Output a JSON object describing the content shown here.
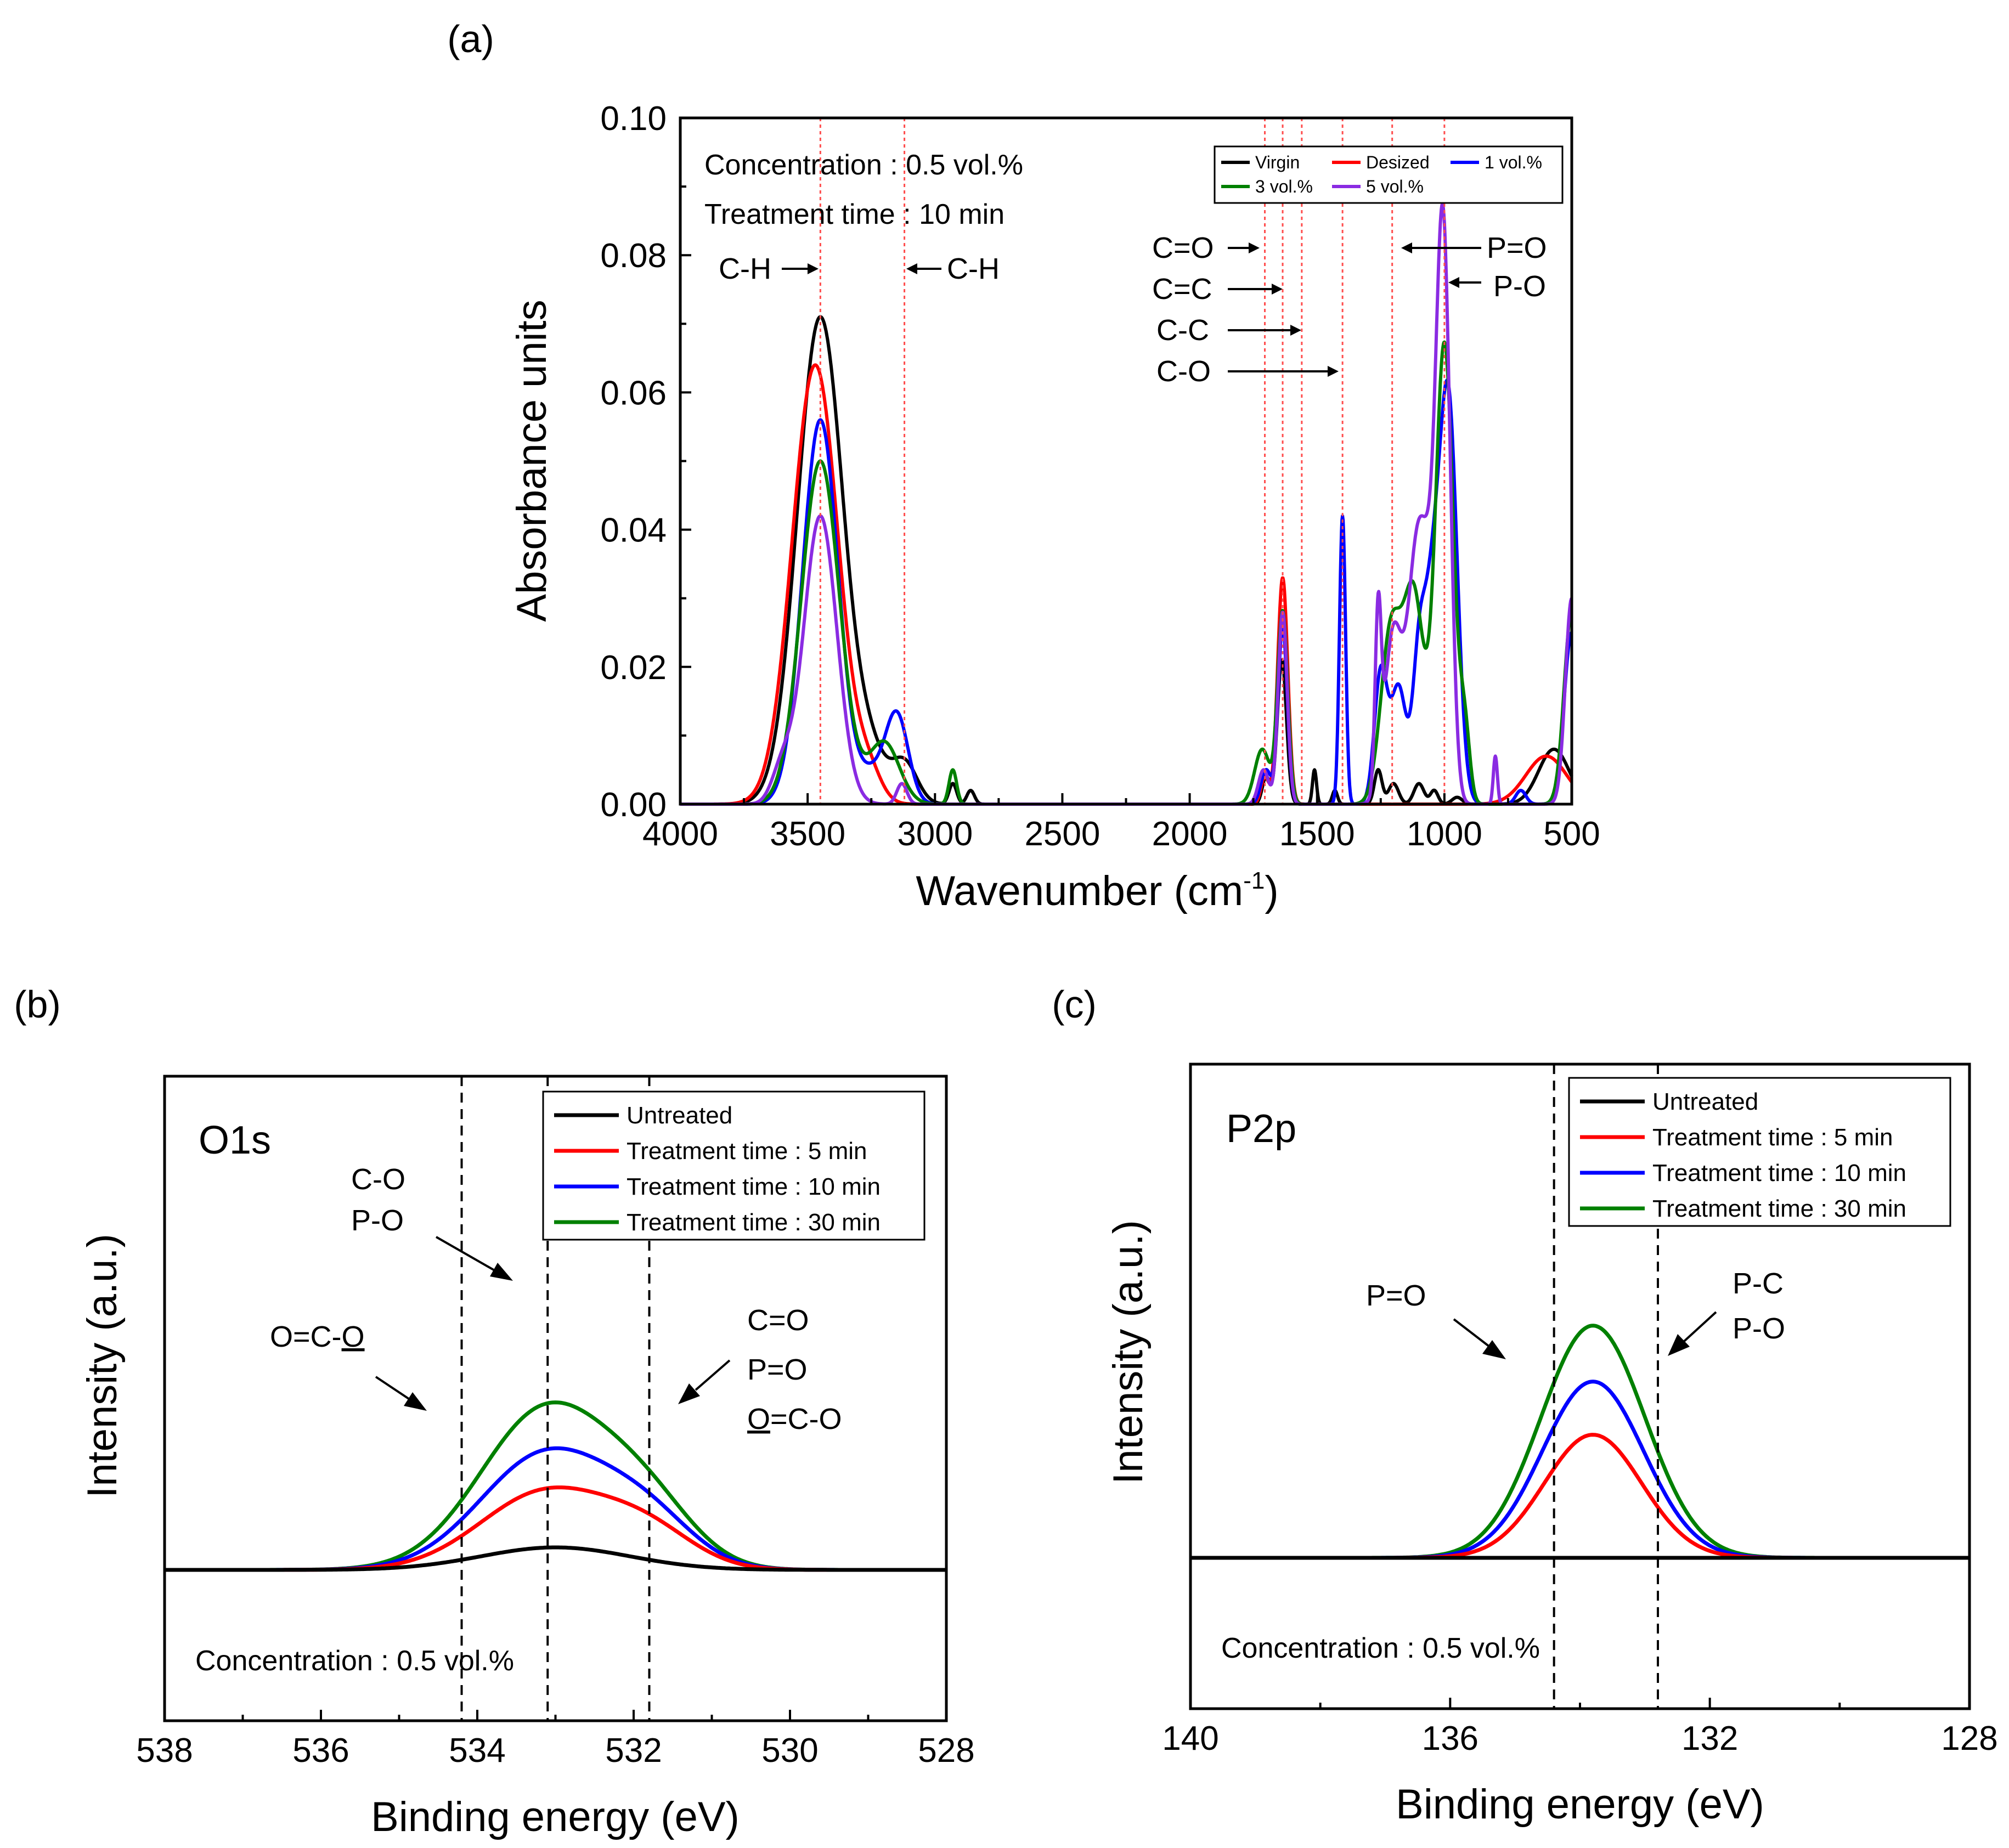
{
  "chart_data": [
    {
      "panel": "(a)",
      "type": "line",
      "xlabel": "Wavenumber (cm",
      "xlabel_sup": "-1",
      "xlabel_end": ")",
      "ylabel": "Absorbance units",
      "xlim": [
        4000,
        500
      ],
      "ylim": [
        0.0,
        0.1
      ],
      "xticks": [
        "4000",
        "3500",
        "3000",
        "2500",
        "2000",
        "1500",
        "1000",
        "500"
      ],
      "yticks": [
        "0.00",
        "0.02",
        "0.04",
        "0.06",
        "0.08",
        "0.10"
      ],
      "notes": [
        "Concentration : 0.5 vol.%",
        "Treatment time : 10 min"
      ],
      "reference_lines": [
        3450,
        3120,
        1705,
        1635,
        1560,
        1400,
        1205,
        1000
      ],
      "annotations": [
        "C-H",
        "C-H",
        "C=O",
        "C=C",
        "C-C",
        "C-O",
        "P=O",
        "P-O"
      ],
      "legend_position": "top-right",
      "series": [
        {
          "name": "Virgin",
          "color": "#000000",
          "peaks": [
            [
              3450,
              0.071,
              90
            ],
            [
              3250,
              0.006,
              60
            ],
            [
              3120,
              0.006,
              50
            ],
            [
              2930,
              0.003,
              15
            ],
            [
              2860,
              0.002,
              15
            ],
            [
              1638,
              0.021,
              18
            ],
            [
              1700,
              0.004,
              15
            ],
            [
              1510,
              0.005,
              8
            ],
            [
              1430,
              0.002,
              10
            ],
            [
              1260,
              0.005,
              15
            ],
            [
              1200,
              0.003,
              20
            ],
            [
              1100,
              0.003,
              20
            ],
            [
              1040,
              0.002,
              15
            ],
            [
              950,
              0.001,
              20
            ],
            [
              570,
              0.008,
              60
            ]
          ]
        },
        {
          "name": "Desized",
          "color": "#ff0000",
          "peaks": [
            [
              3470,
              0.064,
              90
            ],
            [
              3260,
              0.004,
              50
            ],
            [
              1635,
              0.033,
              20
            ],
            [
              1705,
              0.004,
              15
            ],
            [
              600,
              0.007,
              80
            ]
          ]
        },
        {
          "name": "1 vol.%",
          "color": "#0000ff",
          "peaks": [
            [
              3450,
              0.056,
              70
            ],
            [
              3150,
              0.013,
              45
            ],
            [
              3250,
              0.004,
              50
            ],
            [
              1635,
              0.026,
              18
            ],
            [
              1700,
              0.005,
              20
            ],
            [
              1400,
              0.042,
              12
            ],
            [
              1250,
              0.019,
              25
            ],
            [
              1180,
              0.017,
              30
            ],
            [
              1100,
              0.02,
              25
            ],
            [
              985,
              0.059,
              35
            ],
            [
              1050,
              0.025,
              30
            ],
            [
              700,
              0.002,
              20
            ],
            [
              500,
              0.025,
              30
            ]
          ]
        },
        {
          "name": "3 vol.%",
          "color": "#008000",
          "peaks": [
            [
              3450,
              0.05,
              75
            ],
            [
              3200,
              0.009,
              60
            ],
            [
              2930,
              0.005,
              15
            ],
            [
              1635,
              0.028,
              20
            ],
            [
              1715,
              0.008,
              30
            ],
            [
              1210,
              0.025,
              40
            ],
            [
              1120,
              0.03,
              40
            ],
            [
              1000,
              0.067,
              35
            ],
            [
              920,
              0.01,
              20
            ],
            [
              500,
              0.028,
              30
            ]
          ]
        },
        {
          "name": "5 vol.%",
          "color": "#8a2be2",
          "peaks": [
            [
              3450,
              0.042,
              65
            ],
            [
              3600,
              0.005,
              40
            ],
            [
              3130,
              0.003,
              20
            ],
            [
              1635,
              0.028,
              18
            ],
            [
              1710,
              0.005,
              20
            ],
            [
              1260,
              0.025,
              12
            ],
            [
              1200,
              0.025,
              35
            ],
            [
              1110,
              0.034,
              35
            ],
            [
              1005,
              0.083,
              28
            ],
            [
              1060,
              0.02,
              30
            ],
            [
              800,
              0.007,
              8
            ],
            [
              500,
              0.03,
              25
            ]
          ]
        }
      ]
    },
    {
      "panel": "(b)",
      "type": "line",
      "tag": "O1s",
      "xlabel": "Binding energy (eV)",
      "ylabel": "Intensity (a.u.)",
      "xlim": [
        538,
        528
      ],
      "xticks": [
        "538",
        "536",
        "534",
        "532",
        "530",
        "528"
      ],
      "note": "Concentration : 0.5 vol.%",
      "reference_lines": [
        534.2,
        533.1,
        531.8
      ],
      "annotations": [
        {
          "lines": [
            "C-O",
            "P-O"
          ]
        },
        {
          "prefix": "O=C-",
          "underlined": "O",
          "suffix": ""
        },
        {
          "lines": [
            "C=O",
            "P=O"
          ],
          "extra_underlined": "O",
          "extra_suffix": "=C-O"
        }
      ],
      "legend_position": "top-right",
      "series": [
        {
          "name": "Untreated",
          "color": "#000000",
          "components": [
            [
              533.0,
              0.1,
              0.95
            ]
          ]
        },
        {
          "name": "Treatment time : 5 min",
          "color": "#ff0000",
          "components": [
            [
              533.1,
              0.35,
              0.85
            ],
            [
              531.8,
              0.14,
              0.6
            ]
          ]
        },
        {
          "name": "Treatment time : 10 min",
          "color": "#0000ff",
          "components": [
            [
              533.1,
              0.52,
              0.85
            ],
            [
              531.8,
              0.18,
              0.6
            ]
          ]
        },
        {
          "name": "Treatment time : 30 min",
          "color": "#008000",
          "components": [
            [
              533.1,
              0.72,
              0.85
            ],
            [
              531.8,
              0.22,
              0.6
            ]
          ]
        }
      ]
    },
    {
      "panel": "(c)",
      "type": "line",
      "tag": "P2p",
      "xlabel": "Binding energy (eV)",
      "ylabel": "Intensity (a.u.)",
      "xlim": [
        140,
        128
      ],
      "xticks": [
        "140",
        "136",
        "132",
        "128"
      ],
      "note": "Concentration : 0.5 vol.%",
      "reference_lines": [
        134.4,
        132.8
      ],
      "annotations": [
        {
          "lines": [
            "P=O"
          ]
        },
        {
          "lines": [
            "P-C",
            "P-O"
          ]
        }
      ],
      "legend_position": "top-right",
      "series": [
        {
          "name": "Untreated",
          "color": "#000000",
          "components": []
        },
        {
          "name": "Treatment time : 5 min",
          "color": "#ff0000",
          "components": [
            [
              133.8,
              0.44,
              0.75
            ]
          ]
        },
        {
          "name": "Treatment time : 10 min",
          "color": "#0000ff",
          "components": [
            [
              133.8,
              0.63,
              0.78
            ]
          ]
        },
        {
          "name": "Treatment time : 30 min",
          "color": "#008000",
          "components": [
            [
              133.8,
              0.83,
              0.8
            ]
          ]
        }
      ]
    }
  ]
}
